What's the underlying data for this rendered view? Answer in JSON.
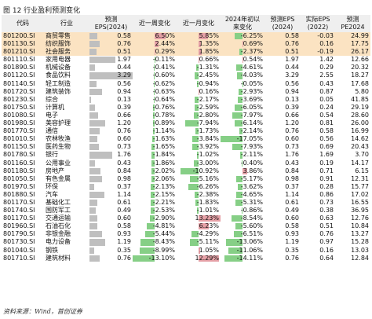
{
  "title": "图 12 行业盈利预测变化",
  "source": "资料来源：Wind，首创证券",
  "headers": [
    "代码",
    "行业",
    "预测\nEPS(2024)",
    "近一周变化",
    "近一月变化",
    "2024年初以\n来变化",
    "预测EPS\n(2024)",
    "实际EPS\n(2022)",
    "预测\nPE2024"
  ],
  "colors": {
    "positive_bar": "#e5a0a6",
    "negative_bar": "#86cf86",
    "eps_bar": "#bfbfbf",
    "highlight_row": "#fbe3c2"
  },
  "rows": [
    {
      "code": "801200.SI",
      "name": "商贸零售",
      "eps_chg": "0.58",
      "wk": "6.50%",
      "mo": "5.85%",
      "ytd": "-6.25%",
      "eps24": "0.58",
      "eps22": "-0.03",
      "pe": "24.99",
      "eps_v": 0.58,
      "wk_v": 6.5,
      "mo_v": 5.85,
      "ytd_v": -6.25,
      "hl": true
    },
    {
      "code": "801130.SI",
      "name": "纺织服饰",
      "eps_chg": "0.76",
      "wk": "2.44%",
      "mo": "1.35%",
      "ytd": "0.69%",
      "eps24": "0.76",
      "eps22": "0.16",
      "pe": "17.75",
      "eps_v": 0.76,
      "wk_v": 2.44,
      "mo_v": 1.35,
      "ytd_v": 0.69,
      "hl": true
    },
    {
      "code": "801210.SI",
      "name": "社会服务",
      "eps_chg": "0.51",
      "wk": "0.29%",
      "mo": "1.85%",
      "ytd": "-2.37%",
      "eps24": "0.51",
      "eps22": "-0.19",
      "pe": "26.17",
      "eps_v": 0.51,
      "wk_v": 0.29,
      "mo_v": 1.85,
      "ytd_v": -2.37,
      "hl": true
    },
    {
      "code": "801110.SI",
      "name": "家用电器",
      "eps_chg": "1.97",
      "wk": "-0.11%",
      "mo": "0.66%",
      "ytd": "0.54%",
      "eps24": "1.97",
      "eps22": "1.42",
      "pe": "12.66",
      "eps_v": 1.97,
      "wk_v": -0.11,
      "mo_v": 0.66,
      "ytd_v": 0.54,
      "hl": false
    },
    {
      "code": "801890.SI",
      "name": "机械设备",
      "eps_chg": "0.44",
      "wk": "-0.41%",
      "mo": "-1.31%",
      "ytd": "-4.61%",
      "eps24": "0.44",
      "eps22": "0.29",
      "pe": "20.32",
      "eps_v": 0.44,
      "wk_v": -0.41,
      "mo_v": -1.31,
      "ytd_v": -4.61,
      "hl": false
    },
    {
      "code": "801120.SI",
      "name": "食品饮料",
      "eps_chg": "3.29",
      "wk": "-0.60%",
      "mo": "-2.45%",
      "ytd": "-4.03%",
      "eps24": "3.29",
      "eps22": "2.55",
      "pe": "18.27",
      "eps_v": 3.29,
      "wk_v": -0.6,
      "mo_v": -2.45,
      "ytd_v": -4.03,
      "hl": false
    },
    {
      "code": "801140.SI",
      "name": "轻工制造",
      "eps_chg": "0.56",
      "wk": "-0.62%",
      "mo": "-0.94%",
      "ytd": "-0.05%",
      "eps24": "0.56",
      "eps22": "0.43",
      "pe": "17.68",
      "eps_v": 0.56,
      "wk_v": -0.62,
      "mo_v": -0.94,
      "ytd_v": -0.05,
      "hl": false
    },
    {
      "code": "801720.SI",
      "name": "建筑装饰",
      "eps_chg": "0.94",
      "wk": "-0.63%",
      "mo": "0.16%",
      "ytd": "-2.93%",
      "eps24": "0.94",
      "eps22": "0.87",
      "pe": "5.80",
      "eps_v": 0.94,
      "wk_v": -0.63,
      "mo_v": 0.16,
      "ytd_v": -2.93,
      "hl": false
    },
    {
      "code": "801230.SI",
      "name": "综合",
      "eps_chg": "0.13",
      "wk": "-0.64%",
      "mo": "-2.17%",
      "ytd": "-3.69%",
      "eps24": "0.13",
      "eps22": "0.05",
      "pe": "41.85",
      "eps_v": 0.13,
      "wk_v": -0.64,
      "mo_v": -2.17,
      "ytd_v": -3.69,
      "hl": false
    },
    {
      "code": "801750.SI",
      "name": "计算机",
      "eps_chg": "0.39",
      "wk": "-0.76%",
      "mo": "-2.59%",
      "ytd": "-6.05%",
      "eps24": "0.39",
      "eps22": "0.24",
      "pe": "29.19",
      "eps_v": 0.39,
      "wk_v": -0.76,
      "mo_v": -2.59,
      "ytd_v": -6.05,
      "hl": false
    },
    {
      "code": "801080.SI",
      "name": "电子",
      "eps_chg": "0.66",
      "wk": "-0.78%",
      "mo": "-2.80%",
      "ytd": "-7.97%",
      "eps24": "0.66",
      "eps22": "0.54",
      "pe": "28.60",
      "eps_v": 0.66,
      "wk_v": -0.78,
      "mo_v": -2.8,
      "ytd_v": -7.97,
      "hl": false
    },
    {
      "code": "801980.SI",
      "name": "美容护理",
      "eps_chg": "1.20",
      "wk": "-0.89%",
      "mo": "-7.94%",
      "ytd": "-6.14%",
      "eps24": "1.20",
      "eps22": "0.81",
      "pe": "26.00",
      "eps_v": 1.2,
      "wk_v": -0.89,
      "mo_v": -7.94,
      "ytd_v": -6.14,
      "hl": false
    },
    {
      "code": "801770.SI",
      "name": "通信",
      "eps_chg": "0.76",
      "wk": "-1.14%",
      "mo": "-1.73%",
      "ytd": "-2.14%",
      "eps24": "0.76",
      "eps22": "0.58",
      "pe": "16.99",
      "eps_v": 0.76,
      "wk_v": -1.14,
      "mo_v": -1.73,
      "ytd_v": -2.14,
      "hl": false
    },
    {
      "code": "801010.SI",
      "name": "农林牧渔",
      "eps_chg": "0.60",
      "wk": "-1.63%",
      "mo": "-3.84%",
      "ytd": "-17.05%",
      "eps24": "0.60",
      "eps22": "0.56",
      "pe": "14.62",
      "eps_v": 0.6,
      "wk_v": -1.63,
      "mo_v": -3.84,
      "ytd_v": -17.05,
      "hl": false
    },
    {
      "code": "801150.SI",
      "name": "医药生物",
      "eps_chg": "0.73",
      "wk": "-1.65%",
      "mo": "-3.92%",
      "ytd": "-7.93%",
      "eps24": "0.73",
      "eps22": "0.69",
      "pe": "20.43",
      "eps_v": 0.73,
      "wk_v": -1.65,
      "mo_v": -3.92,
      "ytd_v": -7.93,
      "hl": false
    },
    {
      "code": "801780.SI",
      "name": "银行",
      "eps_chg": "1.76",
      "wk": "-1.84%",
      "mo": "-1.02%",
      "ytd": "-2.11%",
      "eps24": "1.76",
      "eps22": "1.69",
      "pe": "3.70",
      "eps_v": 1.76,
      "wk_v": -1.84,
      "mo_v": -1.02,
      "ytd_v": -2.11,
      "hl": false
    },
    {
      "code": "801160.SI",
      "name": "公用事业",
      "eps_chg": "0.43",
      "wk": "-1.86%",
      "mo": "-3.00%",
      "ytd": "-0.40%",
      "eps24": "0.43",
      "eps22": "0.19",
      "pe": "14.17",
      "eps_v": 0.43,
      "wk_v": -1.86,
      "mo_v": -3.0,
      "ytd_v": -0.4,
      "hl": false
    },
    {
      "code": "801180.SI",
      "name": "房地产",
      "eps_chg": "0.84",
      "wk": "-2.02%",
      "mo": "-10.92%",
      "ytd": "3.86%",
      "eps24": "0.84",
      "eps22": "0.71",
      "pe": "6.15",
      "eps_v": 0.84,
      "wk_v": -2.02,
      "mo_v": -10.92,
      "ytd_v": 3.86,
      "hl": false
    },
    {
      "code": "801050.SI",
      "name": "有色金属",
      "eps_chg": "0.98",
      "wk": "-2.06%",
      "mo": "-5.16%",
      "ytd": "-5.17%",
      "eps24": "0.98",
      "eps22": "0.91",
      "pe": "12.31",
      "eps_v": 0.98,
      "wk_v": -2.06,
      "mo_v": -5.16,
      "ytd_v": -5.17,
      "hl": false
    },
    {
      "code": "801970.SI",
      "name": "环保",
      "eps_chg": "0.37",
      "wk": "-2.13%",
      "mo": "-6.26%",
      "ytd": "-3.62%",
      "eps24": "0.37",
      "eps22": "0.28",
      "pe": "15.77",
      "eps_v": 0.37,
      "wk_v": -2.13,
      "mo_v": -6.26,
      "ytd_v": -3.62,
      "hl": false
    },
    {
      "code": "801880.SI",
      "name": "汽车",
      "eps_chg": "1.14",
      "wk": "-2.15%",
      "mo": "-2.38%",
      "ytd": "-4.65%",
      "eps24": "1.14",
      "eps22": "0.86",
      "pe": "17.02",
      "eps_v": 1.14,
      "wk_v": -2.15,
      "mo_v": -2.38,
      "ytd_v": -4.65,
      "hl": false
    },
    {
      "code": "801170.SI",
      "name": "基础化工",
      "eps_chg": "0.61",
      "wk": "-2.21%",
      "mo": "-1.83%",
      "ytd": "-5.31%",
      "eps24": "0.61",
      "eps22": "0.73",
      "pe": "16.55",
      "eps_v": 0.61,
      "wk_v": -2.21,
      "mo_v": -1.83,
      "ytd_v": -5.31,
      "hl": false
    },
    {
      "code": "801740.SI",
      "name": "国防军工",
      "eps_chg": "0.49",
      "wk": "-2.53%",
      "mo": "-1.01%",
      "ytd": "-0.86%",
      "eps24": "0.49",
      "eps22": "0.38",
      "pe": "36.95",
      "eps_v": 0.49,
      "wk_v": -2.53,
      "mo_v": -1.01,
      "ytd_v": -0.86,
      "hl": false
    },
    {
      "code": "801170.SI",
      "name": "交通运输",
      "eps_chg": "0.60",
      "wk": "-2.90%",
      "mo": "13.23%",
      "ytd": "-8.54%",
      "eps24": "0.60",
      "eps22": "0.63",
      "pe": "12.76",
      "eps_v": 0.6,
      "wk_v": -2.9,
      "mo_v": 13.23,
      "ytd_v": -8.54,
      "hl": false
    },
    {
      "code": "801960.SI",
      "name": "石油石化",
      "eps_chg": "0.58",
      "wk": "-4.81%",
      "mo": "6.23%",
      "ytd": "-5.60%",
      "eps24": "0.58",
      "eps22": "0.51",
      "pe": "10.84",
      "eps_v": 0.58,
      "wk_v": -4.81,
      "mo_v": 6.23,
      "ytd_v": -5.6,
      "hl": false
    },
    {
      "code": "801790.SI",
      "name": "非银金融",
      "eps_chg": "0.93",
      "wk": "-5.44%",
      "mo": "-4.29%",
      "ytd": "-6.51%",
      "eps24": "0.93",
      "eps22": "0.76",
      "pe": "13.27",
      "eps_v": 0.93,
      "wk_v": -5.44,
      "mo_v": -4.29,
      "ytd_v": -6.51,
      "hl": false
    },
    {
      "code": "801730.SI",
      "name": "电力设备",
      "eps_chg": "1.19",
      "wk": "-8.43%",
      "mo": "-5.11%",
      "ytd": "-13.06%",
      "eps24": "1.19",
      "eps22": "0.97",
      "pe": "15.28",
      "eps_v": 1.19,
      "wk_v": -8.43,
      "mo_v": -5.11,
      "ytd_v": -13.06,
      "hl": false
    },
    {
      "code": "801040.SI",
      "name": "钢铁",
      "eps_chg": "0.35",
      "wk": "-8.99%",
      "mo": "1.05%",
      "ytd": "-11.06%",
      "eps24": "0.35",
      "eps22": "0.16",
      "pe": "13.03",
      "eps_v": 0.35,
      "wk_v": -8.99,
      "mo_v": 1.05,
      "ytd_v": -11.06,
      "hl": false
    },
    {
      "code": "801710.SI",
      "name": "建筑材料",
      "eps_chg": "0.76",
      "wk": "-13.10%",
      "mo": "12.29%",
      "ytd": "-14.11%",
      "eps24": "0.76",
      "eps22": "0.64",
      "pe": "12.84",
      "eps_v": 0.76,
      "wk_v": -13.1,
      "mo_v": 12.29,
      "ytd_v": -14.11,
      "hl": false
    }
  ]
}
